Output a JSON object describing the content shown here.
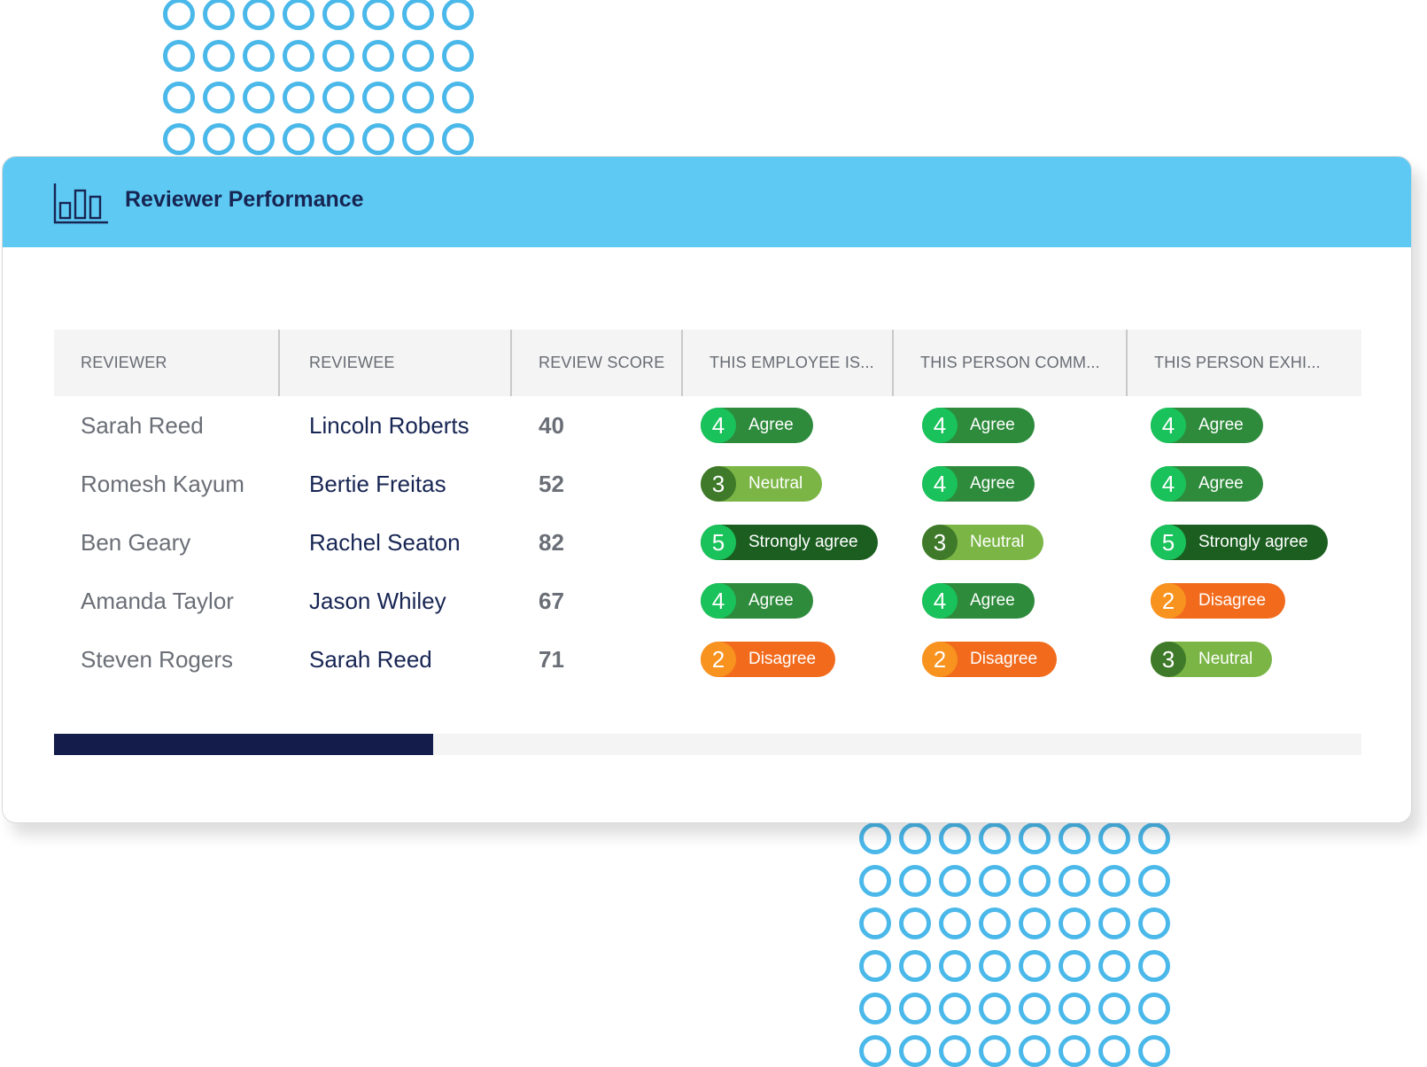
{
  "header": {
    "title": "Reviewer Performance",
    "icon": "bar-chart-icon",
    "background_color": "#5ecaf3"
  },
  "table": {
    "columns": [
      "REVIEWER",
      "REVIEWEE",
      "REVIEW SCORE",
      "THIS EMPLOYEE IS...",
      "THIS PERSON COMM...",
      "THIS PERSON EXHI..."
    ],
    "rows": [
      {
        "reviewer": "Sarah Reed",
        "reviewee": "Lincoln Roberts",
        "score": "40",
        "ratings": [
          {
            "value": "4",
            "label": "Agree"
          },
          {
            "value": "4",
            "label": "Agree"
          },
          {
            "value": "4",
            "label": "Agree"
          }
        ]
      },
      {
        "reviewer": "Romesh Kayum",
        "reviewee": "Bertie Freitas",
        "score": "52",
        "ratings": [
          {
            "value": "3",
            "label": "Neutral"
          },
          {
            "value": "4",
            "label": "Agree"
          },
          {
            "value": "4",
            "label": "Agree"
          }
        ]
      },
      {
        "reviewer": "Ben Geary",
        "reviewee": "Rachel Seaton",
        "score": "82",
        "ratings": [
          {
            "value": "5",
            "label": "Strongly agree"
          },
          {
            "value": "3",
            "label": "Neutral"
          },
          {
            "value": "5",
            "label": "Strongly agree"
          }
        ]
      },
      {
        "reviewer": "Amanda Taylor",
        "reviewee": "Jason Whiley",
        "score": "67",
        "ratings": [
          {
            "value": "4",
            "label": "Agree"
          },
          {
            "value": "4",
            "label": "Agree"
          },
          {
            "value": "2",
            "label": "Disagree"
          }
        ]
      },
      {
        "reviewer": "Steven Rogers",
        "reviewee": "Sarah Reed",
        "score": "71",
        "ratings": [
          {
            "value": "2",
            "label": "Disagree"
          },
          {
            "value": "2",
            "label": "Disagree"
          },
          {
            "value": "3",
            "label": "Neutral"
          }
        ]
      }
    ]
  },
  "rating_colors": {
    "5": "#1b5e20",
    "4": "#2e8b3c",
    "3": "#7ab545",
    "2": "#f26b1d"
  },
  "scrollbar": {
    "position_fraction": 0.29,
    "thumb_color": "#141c4c"
  },
  "decor": {
    "dot_color": "#4bb8ea"
  }
}
